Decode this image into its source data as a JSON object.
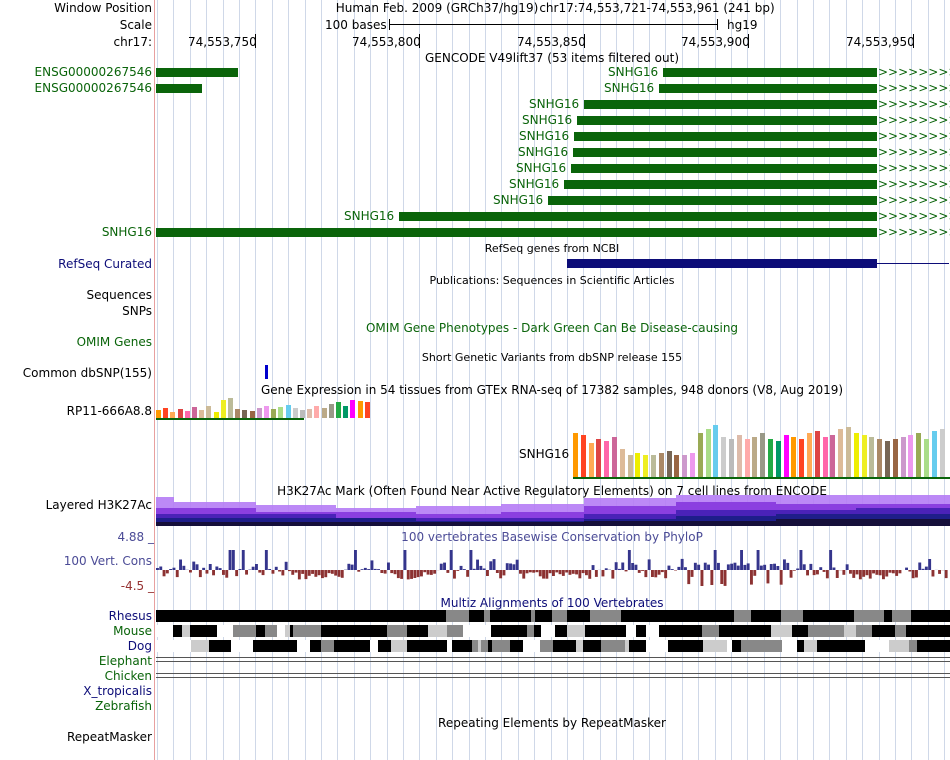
{
  "header": {
    "window_position_label": "Window Position",
    "assembly": "Human Feb. 2009 (GRCh37/hg19)",
    "position": "chr17:74,553,721-74,553,961 (241 bp)",
    "scale_label": "Scale",
    "scale_text": "100 bases",
    "build": "hg19",
    "chrom_label": "chr17:",
    "ruler": [
      "74,553,750",
      "74,553,800",
      "74,553,850",
      "74,553,900",
      "74,553,950"
    ]
  },
  "gencode": {
    "title": "GENCODE V49lift37 (53 items filtered out)",
    "left_labels": [
      "ENSG00000267546",
      "ENSG00000267546"
    ],
    "snhg_labels": [
      "SNHG16",
      "SNHG16",
      "SNHG16",
      "SNHG16",
      "SNHG16",
      "SNHG16",
      "SNHG16",
      "SNHG16",
      "SNHG16",
      "SNHG16"
    ],
    "last_label": "SNHG16",
    "arrows": ">>>>>>>>>"
  },
  "refseq": {
    "title": "RefSeq genes from NCBI",
    "label": "RefSeq Curated"
  },
  "publications": {
    "title": "Publications: Sequences in Scientific Articles",
    "label1": "Sequences",
    "label2": "SNPs"
  },
  "omim": {
    "title": "OMIM Gene Phenotypes - Dark Green Can Be Disease-causing",
    "label": "OMIM Genes"
  },
  "dbsnp": {
    "title": "Short Genetic Variants from dbSNP release 155",
    "label": "Common dbSNP(155)"
  },
  "gtex": {
    "title": "Gene Expression in 54 tissues from GTEx RNA-seq of 17382 samples, 948 donors (V8, Aug 2019)",
    "gene1": "RP11-666A8.8",
    "gene2": "SNHG16",
    "colors": [
      "#ff9900",
      "#ff4422",
      "#ffaa55",
      "#dd4444",
      "#ff66aa",
      "#cc6699",
      "#ddbb99",
      "#ccbb99",
      "#eeee00",
      "#eeee22",
      "#bbbb99",
      "#aa8866",
      "#776655",
      "#996644",
      "#cc99cc",
      "#ee99ee",
      "#99aa55",
      "#aadd88",
      "#66ccee",
      "#cccccc",
      "#bbbbbb",
      "#ddbbaa",
      "#ffaaaa",
      "#bbaa88",
      "#999988",
      "#22aa44",
      "#009966",
      "#ff00ff"
    ],
    "heights1": [
      8,
      10,
      6,
      9,
      7,
      11,
      8,
      12,
      6,
      18,
      20,
      9,
      8,
      7,
      10,
      12,
      9,
      11,
      13,
      10,
      8,
      9,
      12,
      10,
      14,
      16,
      12,
      18,
      17,
      16
    ],
    "heights2": [
      44,
      42,
      34,
      38,
      36,
      40,
      28,
      22,
      24,
      22,
      22,
      24,
      26,
      22,
      22,
      24,
      44,
      48,
      52,
      40,
      38,
      42,
      38,
      40,
      44,
      38,
      36,
      42,
      40,
      38,
      44,
      46,
      40,
      42,
      48,
      50,
      44,
      42,
      40,
      38,
      36,
      38,
      40,
      42,
      44,
      38,
      46,
      48
    ]
  },
  "h3k27ac": {
    "title": "H3K27Ac Mark (Often Found Near Active Regulatory Elements) on 7 cell lines from ENCODE",
    "label": "Layered H3K27Ac"
  },
  "conservation": {
    "title": "100 vertebrates Basewise Conservation by PhyloP",
    "label": "100 Vert. Cons",
    "max": "4.88 _",
    "min": "-4.5 _"
  },
  "multiz": {
    "title": "Multiz Alignments of 100 Vertebrates",
    "species": [
      "Rhesus",
      "Mouse",
      "Dog",
      "Elephant",
      "Chicken",
      "X_tropicalis",
      "Zebrafish"
    ]
  },
  "repeatmasker": {
    "title": "Repeating Elements by RepeatMasker",
    "label": "RepeatMasker"
  }
}
